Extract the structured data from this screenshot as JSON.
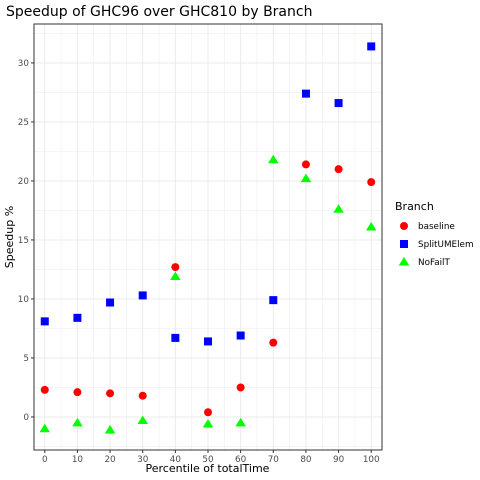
{
  "chart_data": {
    "type": "scatter",
    "title": "Speedup of GHC96 over GHC810 by Branch",
    "xlabel": "Percentile of totalTime",
    "ylabel": "Speedup %",
    "x": [
      0,
      10,
      20,
      30,
      40,
      50,
      60,
      70,
      80,
      90,
      100
    ],
    "xticks": [
      "0",
      "10",
      "20",
      "30",
      "40",
      "50",
      "60",
      "70",
      "80",
      "90",
      "100"
    ],
    "yticks": [
      "0",
      "5",
      "10",
      "15",
      "20",
      "25",
      "30"
    ],
    "xlim": [
      -3.3,
      103.3
    ],
    "ylim": [
      -2.8,
      33.3
    ],
    "grid": true,
    "legend": {
      "title": "Branch",
      "position": "right"
    },
    "series": [
      {
        "name": "baseline",
        "color": "#ff0000",
        "shape": "circle",
        "values": [
          2.3,
          2.1,
          2.0,
          1.8,
          12.7,
          0.4,
          2.5,
          6.3,
          21.4,
          21.0,
          19.9
        ]
      },
      {
        "name": "SplitUMElem",
        "color": "#0000ff",
        "shape": "square",
        "values": [
          8.1,
          8.4,
          9.7,
          10.3,
          6.7,
          6.4,
          6.9,
          9.9,
          27.4,
          26.6,
          31.4
        ]
      },
      {
        "name": "NoFailT",
        "color": "#00ff00",
        "shape": "triangle",
        "values": [
          -1.0,
          -0.5,
          -1.1,
          -0.3,
          11.9,
          -0.6,
          -0.5,
          21.8,
          20.2,
          17.6,
          16.1
        ]
      }
    ]
  }
}
